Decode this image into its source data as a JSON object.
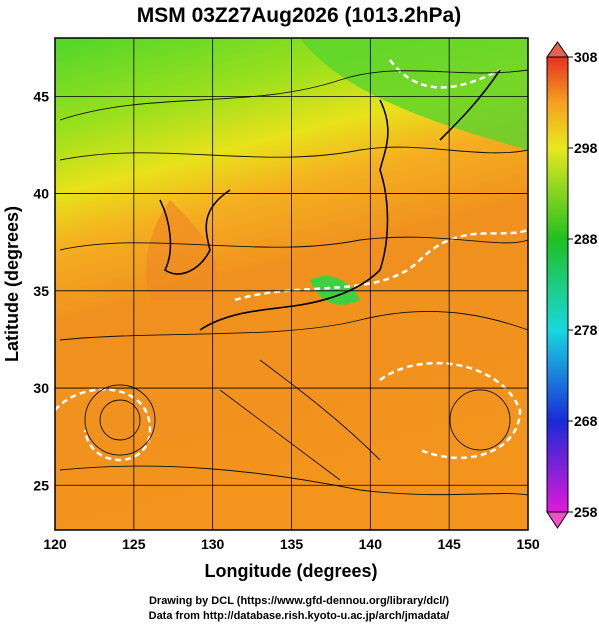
{
  "title": "MSM 03Z27Aug2026 (1013.2hPa)",
  "map": {
    "xlabel": "Longitude (degrees)",
    "ylabel": "Latitude (degrees)",
    "xlim": [
      120,
      150
    ],
    "ylim": [
      22.7,
      48
    ],
    "xticks": [
      120,
      125,
      130,
      135,
      140,
      145,
      150
    ],
    "yticks": [
      25,
      30,
      35,
      40,
      45
    ]
  },
  "colorbar": {
    "range": [
      258,
      308
    ],
    "ticks": [
      258,
      268,
      278,
      288,
      298,
      308
    ]
  },
  "credits": [
    "Drawing by DCL (https://www.gfd-dennou.org/library/dcl/)",
    "Data from http://database.rish.kyoto-u.ac.jp/arch/jmadata/"
  ]
}
